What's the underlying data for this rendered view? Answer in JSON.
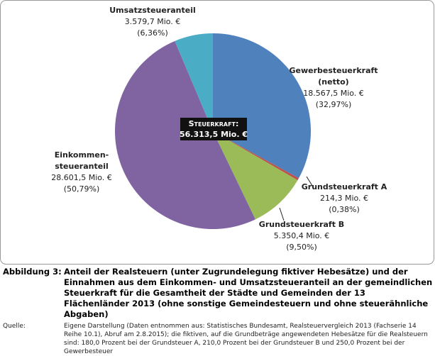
{
  "chart_data": {
    "type": "pie",
    "categories": [
      "Gewerbesteuerkraft\n(netto)",
      "Grundsteuerkraft A",
      "Grundsteuerkraft B",
      "Einkommen-\nsteueranteil",
      "Umsatzsteueranteil"
    ],
    "values": [
      18567.5,
      214.3,
      5350.4,
      28601.5,
      3579.7
    ],
    "value_labels": [
      "18.567,5 Mio. €",
      "214,3 Mio. €",
      "5.350,4 Mio. €",
      "28.601,5 Mio. €",
      "3.579,7 Mio. €"
    ],
    "shares": [
      32.97,
      0.38,
      9.5,
      50.79,
      6.36
    ],
    "share_labels": [
      "(32,97%)",
      "(0,38%)",
      "(9,50%)",
      "(50,79%)",
      "(6,36%)"
    ],
    "colors": [
      "#4f81bd",
      "#c0504d",
      "#9bbb59",
      "#8064a2",
      "#4bacc6"
    ],
    "center_label": {
      "title": "Steuerkraft:",
      "value": "56.313,5 Mio. €"
    }
  },
  "caption": {
    "label": "Abbildung 3:",
    "text": "Anteil der Realsteuern (unter Zugrundelegung fiktiver Hebesätze) und der Einnahmen aus dem Einkommen- und Umsatzsteueranteil an der gemeindlichen Steuerkraft für die Gesamtheit der Städte und Gemeinden der 13 Flächenländer 2013 (ohne sonstige Gemeindesteuern und ohne steuerähnliche Abgaben)"
  },
  "source": {
    "label": "Quelle:",
    "text": "Eigene Darstellung (Daten entnommen aus: Statistisches Bundesamt, Realsteuervergleich 2013 (Fachserie 14 Reihe 10.1), Abruf am 2.8.2015); die fiktiven, auf die Grundbeträge angewendeten Hebesätze für die Realsteuern sind: 180,0 Prozent bei der Grundsteuer A, 210,0 Prozent bei der Grundsteuer B und 250,0 Prozent bei der Gewerbesteuer"
  }
}
